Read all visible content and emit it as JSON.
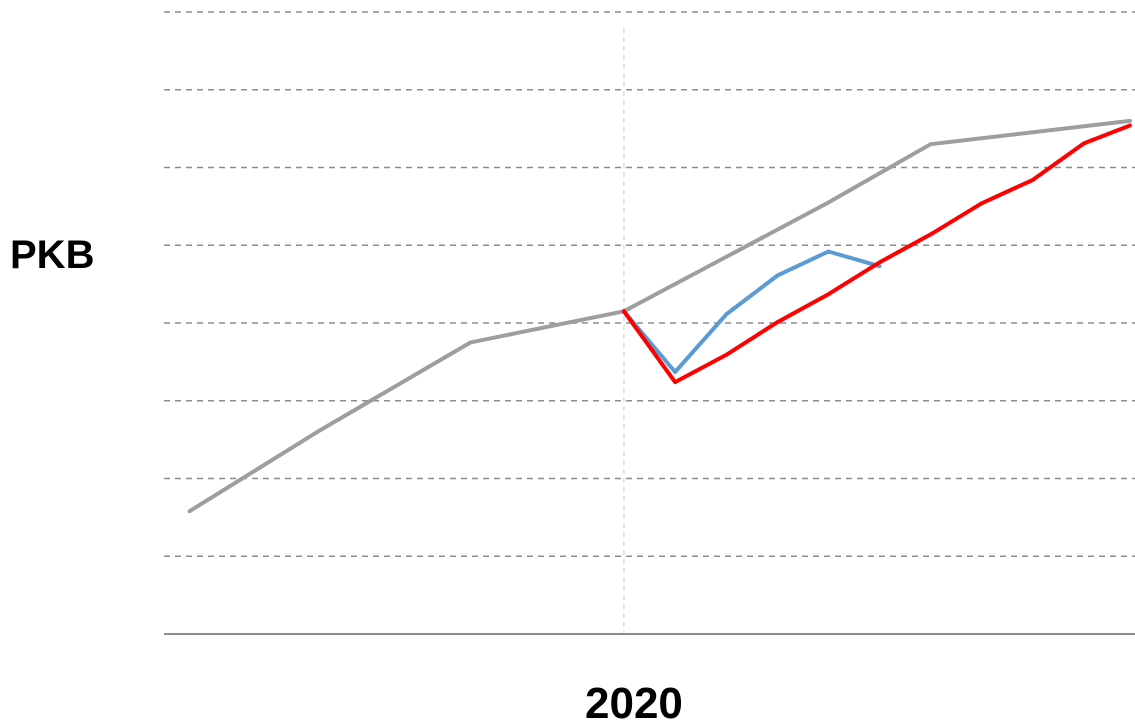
{
  "chart_data": {
    "type": "line",
    "title": "",
    "xlabel": "",
    "ylabel": "PKB",
    "x_tick_labels": [
      {
        "x": 2020,
        "label": "2020"
      }
    ],
    "reference_line_x": 2020,
    "xlim": [
      2011,
      2030
    ],
    "ylim": [
      0,
      8
    ],
    "y_gridlines": [
      1,
      2,
      3,
      4,
      5,
      6,
      7,
      8
    ],
    "grid": true,
    "legend": "none",
    "series": [
      {
        "color": "#9e9e9e",
        "points": [
          [
            2011.5,
            1.58
          ],
          [
            2014,
            2.6
          ],
          [
            2017,
            3.75
          ],
          [
            2020,
            4.15
          ],
          [
            2022,
            4.85
          ],
          [
            2024,
            5.55
          ],
          [
            2026,
            6.3
          ],
          [
            2029.9,
            6.6
          ]
        ]
      },
      {
        "color": "#5b9bd5",
        "points": [
          [
            2020,
            4.15
          ],
          [
            2021,
            3.37
          ],
          [
            2022,
            4.11
          ],
          [
            2023,
            4.61
          ],
          [
            2024,
            4.92
          ],
          [
            2025,
            4.73
          ]
        ]
      },
      {
        "color": "#ff0000",
        "points": [
          [
            2020,
            4.15
          ],
          [
            2021,
            3.24
          ],
          [
            2022,
            3.59
          ],
          [
            2023,
            4.01
          ],
          [
            2024,
            4.37
          ],
          [
            2025,
            4.78
          ],
          [
            2026,
            5.14
          ],
          [
            2027,
            5.54
          ],
          [
            2028,
            5.84
          ],
          [
            2029,
            6.31
          ],
          [
            2029.9,
            6.54
          ]
        ]
      }
    ]
  }
}
